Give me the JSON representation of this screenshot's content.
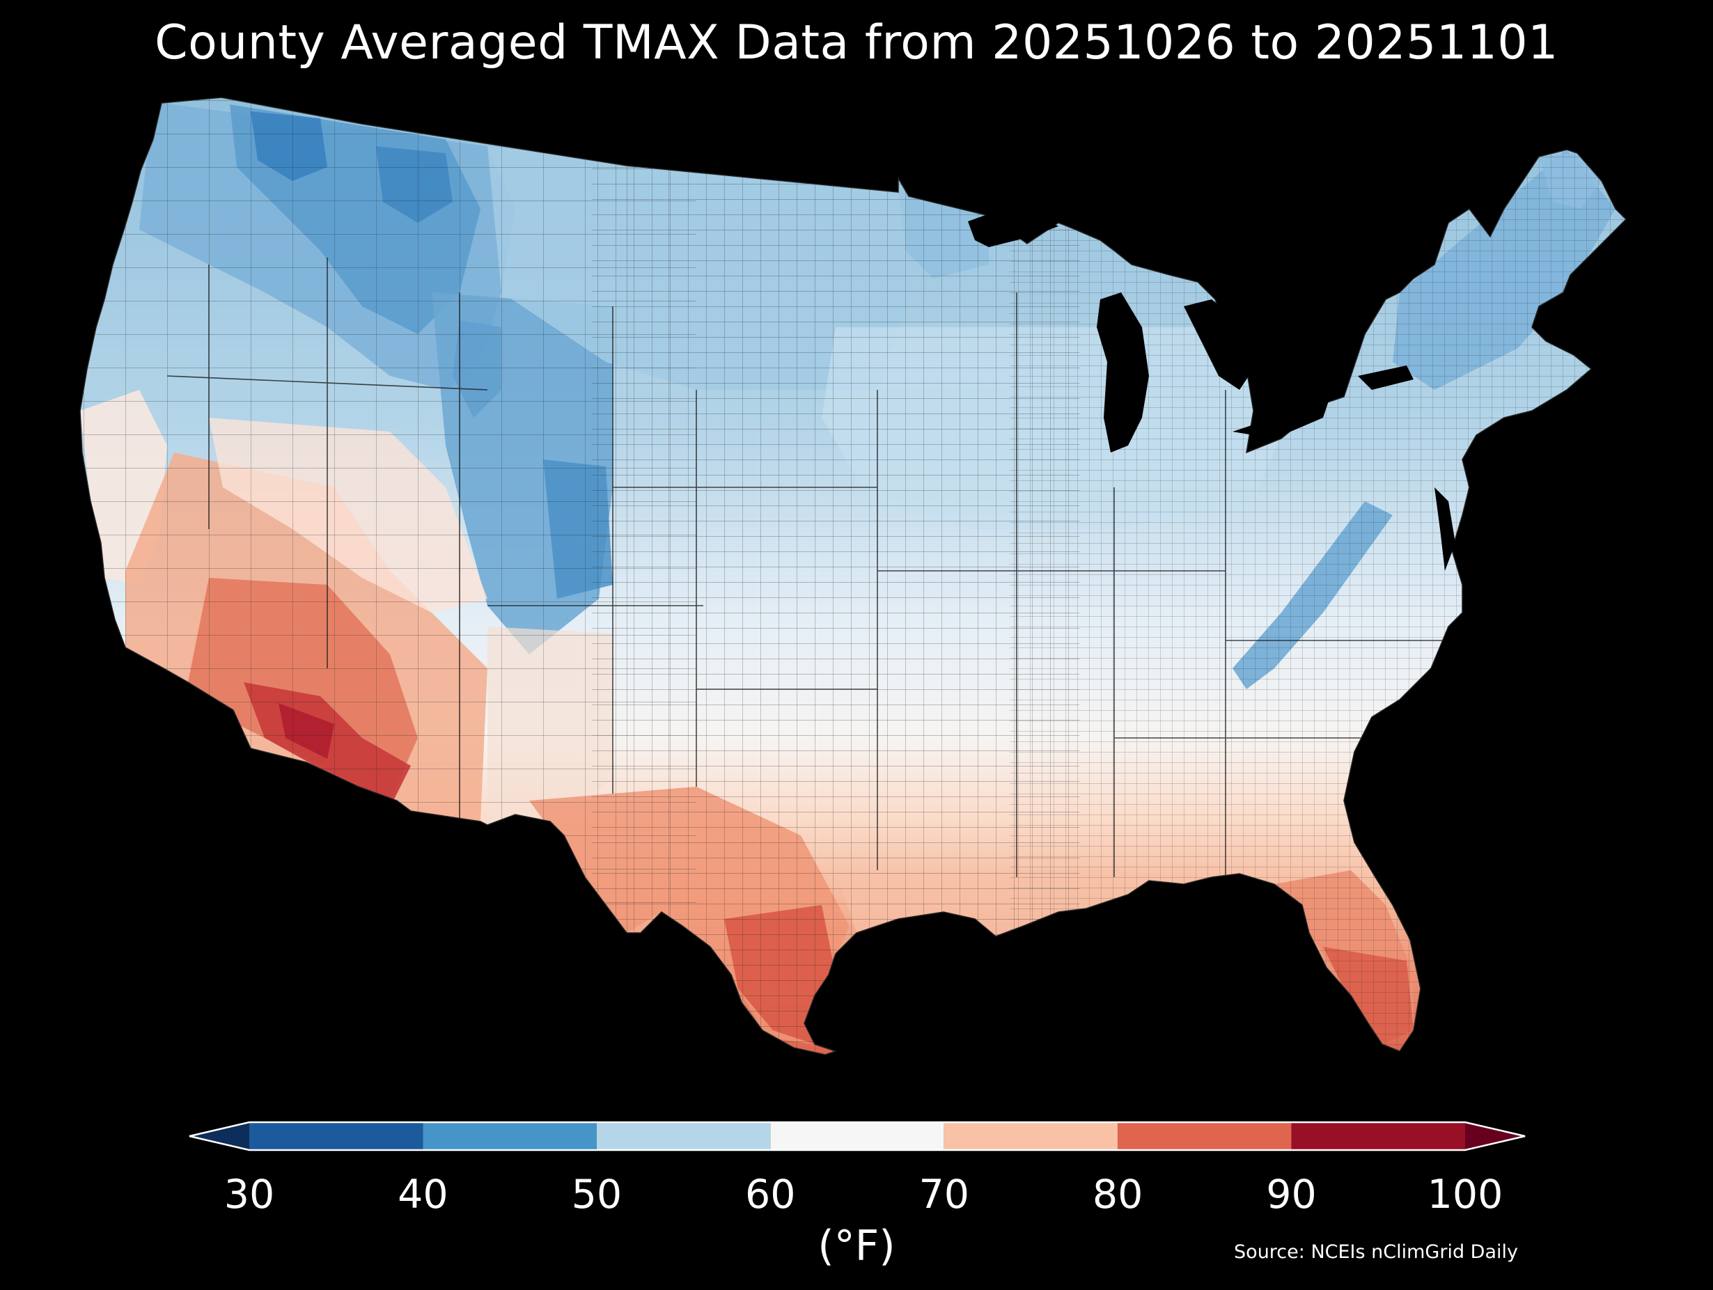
{
  "title": "County Averaged TMAX Data from 20251026 to 20251101",
  "colorbar": {
    "ticks": [
      "30",
      "40",
      "50",
      "60",
      "70",
      "80",
      "90",
      "100"
    ],
    "tick_values": [
      30,
      40,
      50,
      60,
      70,
      80,
      90,
      100
    ],
    "unit_label": "(°F)",
    "bins": [
      {
        "min": 30,
        "max": 40,
        "color": "#1b5a9c"
      },
      {
        "min": 40,
        "max": 50,
        "color": "#4595c8"
      },
      {
        "min": 50,
        "max": 60,
        "color": "#b5d6e9"
      },
      {
        "min": 60,
        "max": 70,
        "color": "#f6f6f6"
      },
      {
        "min": 70,
        "max": 80,
        "color": "#f9c2a6"
      },
      {
        "min": 80,
        "max": 90,
        "color": "#e0654f"
      },
      {
        "min": 90,
        "max": 100,
        "color": "#990f25"
      }
    ],
    "under_color": "#0d2e5a",
    "over_color": "#67001f"
  },
  "source": "Source: NCEIs nClimGrid Daily",
  "map": {
    "region": "Contiguous United States",
    "variable": "TMAX",
    "units": "°F",
    "background": "#000000"
  }
}
